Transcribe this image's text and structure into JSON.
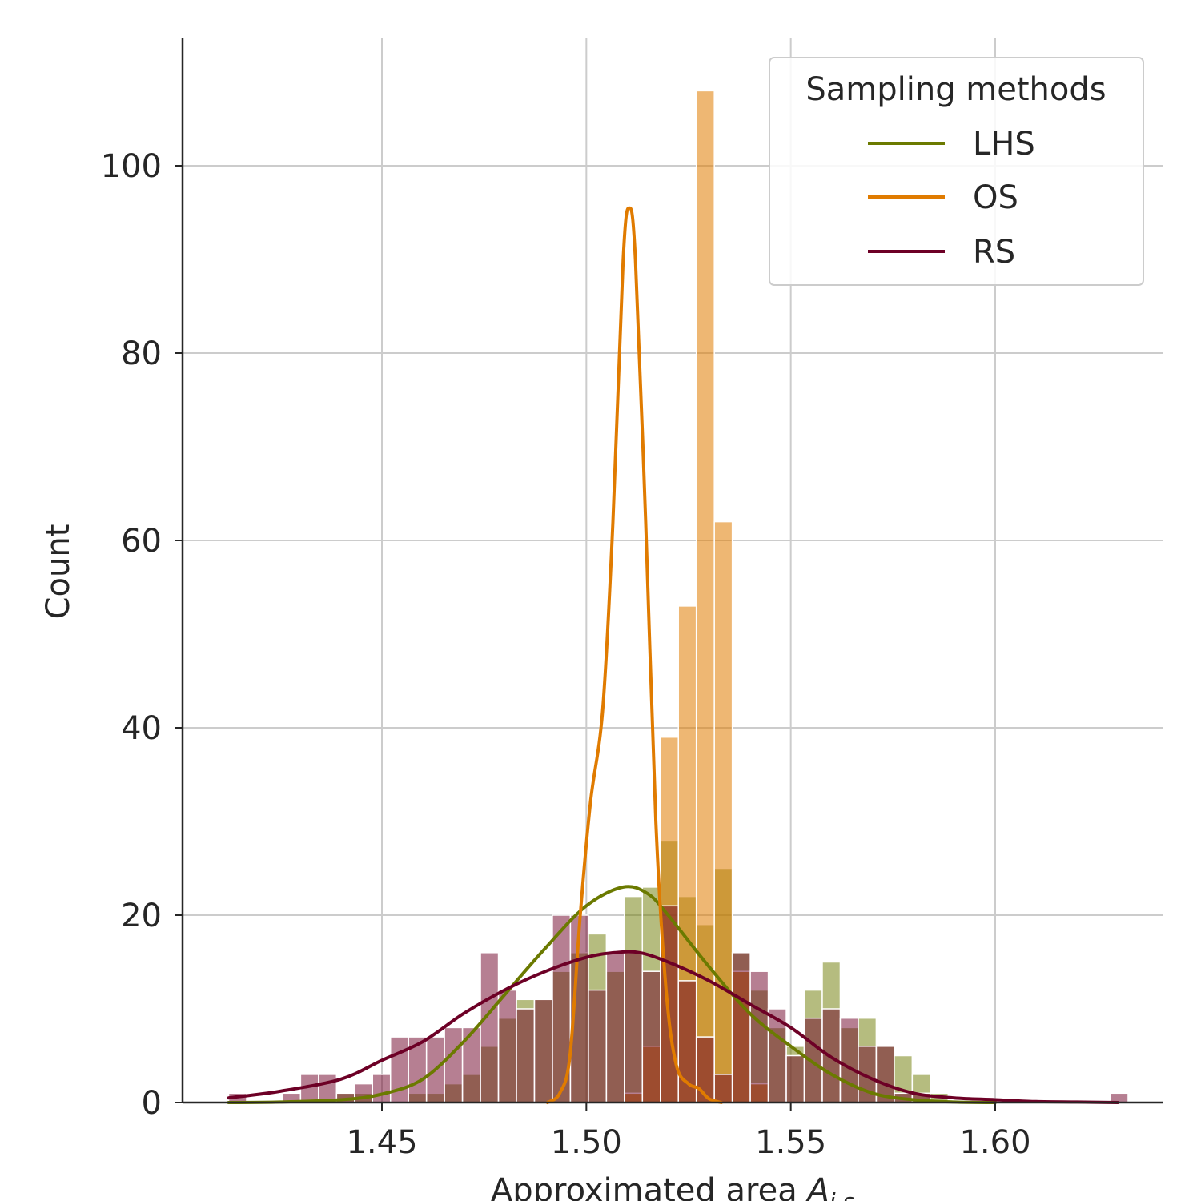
{
  "chart_data": {
    "type": "histogram",
    "xlabel": "Approximated area ",
    "xlabel_symbol": "A",
    "xlabel_subscript": "i,s",
    "ylabel": "Count",
    "xlim": [
      1.4045,
      1.6385
    ],
    "ylim": [
      0,
      113
    ],
    "xticks": [
      1.45,
      1.5,
      1.55,
      1.6
    ],
    "xtick_labels": [
      "1.45",
      "1.50",
      "1.55",
      "1.60"
    ],
    "yticks": [
      0,
      20,
      40,
      60,
      80,
      100
    ],
    "ytick_labels": [
      "0",
      "20",
      "40",
      "60",
      "80",
      "100"
    ],
    "grid": true,
    "legend": {
      "title": "Sampling methods",
      "placement": "top-right",
      "entries": [
        "LHS",
        "OS",
        "RS"
      ]
    },
    "bin_start": 1.4125,
    "bin_width": 0.0044,
    "series": [
      {
        "name": "LHS",
        "color": "#6b7a00",
        "counts": [
          0,
          0,
          0,
          0,
          0,
          0,
          1,
          1,
          0,
          0,
          1,
          1,
          2,
          3,
          6,
          9,
          11,
          11,
          14,
          16,
          18,
          14,
          22,
          23,
          28,
          22,
          19,
          25,
          16,
          12,
          8,
          6,
          12,
          15,
          8,
          9,
          6,
          5,
          3,
          1,
          0,
          0,
          0,
          0,
          0,
          0,
          0,
          0,
          0,
          0
        ],
        "kde": [
          [
            1.4125,
            0
          ],
          [
            1.425,
            0.05
          ],
          [
            1.44,
            0.3
          ],
          [
            1.45,
            0.9
          ],
          [
            1.46,
            2.5
          ],
          [
            1.47,
            6.5
          ],
          [
            1.48,
            11.5
          ],
          [
            1.49,
            16.5
          ],
          [
            1.5,
            21
          ],
          [
            1.509,
            23
          ],
          [
            1.515,
            22.3
          ],
          [
            1.52,
            20
          ],
          [
            1.53,
            14.5
          ],
          [
            1.54,
            9.5
          ],
          [
            1.55,
            6
          ],
          [
            1.56,
            3
          ],
          [
            1.57,
            1
          ],
          [
            1.58,
            0.3
          ],
          [
            1.59,
            0.05
          ],
          [
            1.6,
            0
          ]
        ]
      },
      {
        "name": "OS",
        "color": "#e07b00",
        "counts": [
          0,
          0,
          0,
          0,
          0,
          0,
          0,
          0,
          0,
          0,
          0,
          0,
          0,
          0,
          0,
          0,
          0,
          0,
          0,
          0,
          0,
          0,
          1,
          6,
          39,
          53,
          108,
          62,
          14,
          2,
          0,
          0,
          0,
          0,
          0,
          0,
          0,
          0,
          0,
          0,
          0,
          0,
          0,
          0,
          0,
          0,
          0,
          0,
          0,
          0
        ],
        "kde": [
          [
            1.4905,
            0
          ],
          [
            1.4935,
            1
          ],
          [
            1.496,
            5
          ],
          [
            1.4985,
            20
          ],
          [
            1.501,
            32
          ],
          [
            1.504,
            42
          ],
          [
            1.5065,
            62
          ],
          [
            1.509,
            90
          ],
          [
            1.5105,
            95.5
          ],
          [
            1.512,
            90
          ],
          [
            1.5145,
            62
          ],
          [
            1.517,
            30
          ],
          [
            1.5195,
            12
          ],
          [
            1.522,
            4
          ],
          [
            1.525,
            2
          ],
          [
            1.5275,
            1.5
          ],
          [
            1.53,
            0.4
          ],
          [
            1.533,
            0
          ]
        ]
      },
      {
        "name": "RS",
        "color": "#6d0026",
        "counts": [
          1,
          0,
          0,
          1,
          3,
          3,
          1,
          2,
          3,
          7,
          7,
          7,
          8,
          8,
          16,
          12,
          10,
          11,
          20,
          20,
          12,
          16,
          16,
          14,
          21,
          13,
          7,
          3,
          16,
          14,
          10,
          5,
          9,
          10,
          9,
          6,
          6,
          1,
          1,
          0,
          0,
          0,
          0,
          0,
          0,
          0,
          0,
          0,
          0,
          1
        ],
        "kde": [
          [
            1.4125,
            0.5
          ],
          [
            1.425,
            1.2
          ],
          [
            1.44,
            2.5
          ],
          [
            1.45,
            4.5
          ],
          [
            1.46,
            6.5
          ],
          [
            1.47,
            9.5
          ],
          [
            1.48,
            12
          ],
          [
            1.49,
            14
          ],
          [
            1.5,
            15.5
          ],
          [
            1.507,
            16
          ],
          [
            1.513,
            16
          ],
          [
            1.52,
            15
          ],
          [
            1.53,
            13
          ],
          [
            1.54,
            10.5
          ],
          [
            1.55,
            8
          ],
          [
            1.56,
            4.8
          ],
          [
            1.57,
            2.5
          ],
          [
            1.58,
            1
          ],
          [
            1.59,
            0.5
          ],
          [
            1.6,
            0.3
          ],
          [
            1.61,
            0.1
          ],
          [
            1.62,
            0.05
          ],
          [
            1.63,
            0
          ]
        ]
      }
    ]
  }
}
